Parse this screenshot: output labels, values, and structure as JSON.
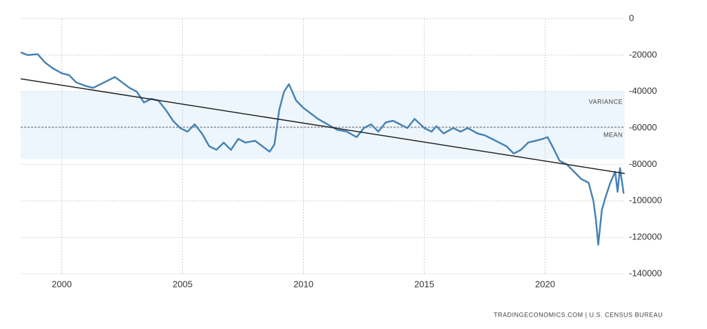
{
  "chart_data": {
    "type": "line",
    "source": "TRADINGECONOMICS.COM | U.S. CENSUS BUREAU",
    "xlim": [
      1998.3,
      2023.3
    ],
    "xticks": [
      2000,
      2005,
      2010,
      2015,
      2020
    ],
    "ylim": [
      -140000,
      0
    ],
    "yticks": [
      0,
      -20000,
      -40000,
      -60000,
      -80000,
      -100000,
      -120000,
      -140000
    ],
    "grid": true,
    "variance_label": "VARIANCE",
    "mean_label": "MEAN",
    "variance_band": [
      -40000,
      -77000
    ],
    "variance_color": "#eef6fd",
    "mean": -59500,
    "trend": {
      "color": "#222222",
      "x": [
        1998.3,
        2023.3
      ],
      "values": [
        -33000,
        -85000
      ]
    },
    "series": [
      {
        "color": "#4682b4",
        "x": [
          1998.3,
          1998.6,
          1999.0,
          1999.3,
          1999.6,
          2000.0,
          2000.3,
          2000.6,
          2001.0,
          2001.3,
          2001.6,
          2001.9,
          2002.2,
          2002.5,
          2002.8,
          2003.1,
          2003.4,
          2003.7,
          2004.0,
          2004.3,
          2004.6,
          2004.9,
          2005.2,
          2005.5,
          2005.8,
          2006.1,
          2006.4,
          2006.7,
          2007.0,
          2007.3,
          2007.6,
          2008.0,
          2008.3,
          2008.6,
          2008.8,
          2009.0,
          2009.2,
          2009.4,
          2009.7,
          2010.0,
          2010.3,
          2010.6,
          2011.0,
          2011.4,
          2011.8,
          2012.2,
          2012.5,
          2012.8,
          2013.1,
          2013.4,
          2013.7,
          2014.0,
          2014.3,
          2014.6,
          2015.0,
          2015.3,
          2015.5,
          2015.8,
          2016.2,
          2016.5,
          2016.8,
          2017.2,
          2017.5,
          2017.8,
          2018.1,
          2018.4,
          2018.7,
          2019.0,
          2019.3,
          2019.6,
          2019.9,
          2020.1,
          2020.3,
          2020.6,
          2020.9,
          2021.2,
          2021.5,
          2021.8,
          2022.0,
          2022.1,
          2022.2,
          2022.35,
          2022.5,
          2022.7,
          2022.9,
          2023.0,
          2023.1,
          2023.25
        ],
        "values": [
          -18500,
          -20000,
          -19500,
          -24000,
          -27000,
          -30000,
          -31000,
          -35000,
          -37000,
          -38000,
          -36000,
          -34000,
          -32000,
          -35000,
          -38000,
          -40000,
          -46000,
          -44000,
          -45000,
          -50000,
          -56000,
          -60000,
          -62000,
          -58000,
          -63000,
          -70000,
          -72000,
          -68000,
          -72000,
          -66000,
          -68000,
          -67000,
          -70000,
          -73000,
          -69000,
          -50000,
          -40000,
          -36000,
          -45000,
          -49000,
          -52000,
          -55000,
          -58000,
          -61000,
          -62000,
          -65000,
          -60000,
          -58000,
          -62000,
          -57000,
          -56000,
          -58000,
          -60000,
          -55000,
          -60000,
          -62000,
          -59000,
          -63000,
          -60000,
          -62000,
          -60000,
          -63000,
          -64000,
          -66000,
          -68000,
          -70000,
          -74000,
          -72000,
          -68000,
          -67000,
          -66000,
          -65000,
          -70000,
          -78000,
          -80000,
          -84000,
          -88000,
          -90000,
          -100000,
          -110000,
          -124000,
          -105000,
          -98000,
          -90000,
          -84000,
          -95000,
          -82000,
          -96000
        ]
      }
    ]
  }
}
